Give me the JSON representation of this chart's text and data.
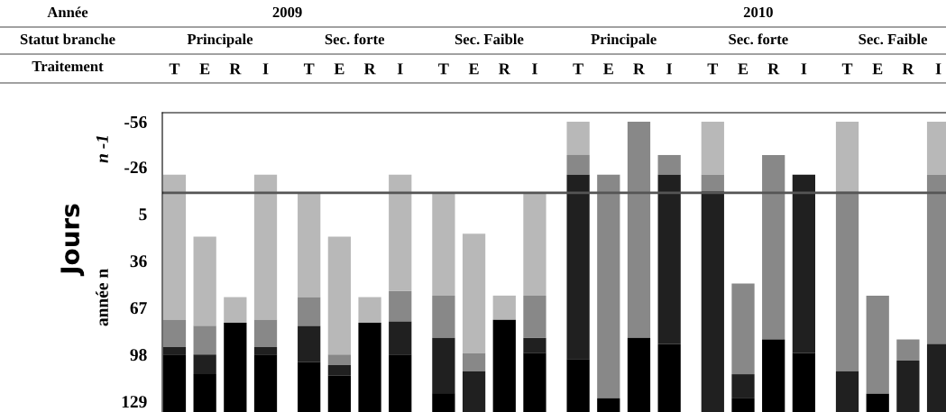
{
  "chart_data": {
    "type": "bar",
    "ylabel": "Jours",
    "categories": [
      "T",
      "E",
      "R",
      "I",
      "T",
      "E",
      "R",
      "I",
      "T",
      "E",
      "R",
      "I",
      "T",
      "E",
      "R",
      "I",
      "T",
      "E",
      "R",
      "I",
      "T",
      "E",
      "R",
      "I"
    ],
    "series": [
      {
        "color": "#b8b8b8",
        "base": [
          -21,
          20,
          60,
          -21,
          -9,
          20,
          60,
          -21,
          -9,
          18,
          59,
          -9,
          -56,
          null,
          null,
          null,
          -56,
          null,
          null,
          null,
          -56,
          null,
          null,
          -56
        ],
        "values": [
          96,
          59,
          17,
          96,
          69,
          78,
          17,
          77,
          68,
          79,
          16,
          68,
          22,
          null,
          null,
          null,
          35,
          null,
          null,
          null,
          46,
          null,
          null,
          35
        ]
      },
      {
        "color": "#888888",
        "base": [
          75,
          79,
          null,
          75,
          60,
          98,
          null,
          56,
          59,
          97,
          null,
          59,
          -34,
          -21,
          -56,
          -34,
          -21,
          51,
          -34,
          null,
          -10,
          59,
          88,
          -21
        ],
        "values": [
          18,
          19,
          null,
          18,
          19,
          7,
          null,
          20,
          28,
          12,
          null,
          28,
          13,
          148,
          143,
          13,
          11,
          60,
          122,
          null,
          119,
          65,
          14,
          112
        ]
      },
      {
        "color": "#202020",
        "base": [
          93,
          98,
          null,
          93,
          79,
          105,
          null,
          76,
          87,
          109,
          null,
          87,
          -21,
          null,
          null,
          -21,
          -10,
          111,
          null,
          -21,
          109,
          null,
          102,
          91
        ],
        "values": [
          5,
          13,
          null,
          5,
          24,
          7,
          null,
          22,
          37,
          27,
          null,
          10,
          122,
          null,
          null,
          112,
          146,
          16,
          null,
          118,
          27,
          null,
          34,
          45
        ]
      },
      {
        "color": "#000000",
        "base": [
          98,
          111,
          77,
          98,
          103,
          112,
          77,
          98,
          124,
          null,
          75,
          97,
          101,
          127,
          87,
          91,
          null,
          127,
          88,
          97,
          null,
          124,
          null,
          null
        ],
        "values": [
          38,
          25,
          59,
          38,
          33,
          24,
          59,
          38,
          12,
          null,
          61,
          39,
          35,
          9,
          49,
          45,
          null,
          9,
          48,
          39,
          null,
          12,
          null,
          null
        ]
      }
    ],
    "ylim": [
      136,
      -62
    ],
    "yticks": [
      -56,
      -26,
      5,
      36,
      67,
      98,
      129
    ],
    "ref_lines": [
      {
        "axis": "y",
        "value": -9,
        "color": "#555555"
      }
    ],
    "annotations": [
      "Année",
      "2009",
      "2010",
      "Statut branche",
      "Principale",
      "Sec. forte",
      "Sec. Faible",
      "Principale",
      "Sec. forte",
      "Sec. Faible",
      "Traitement",
      "n -1",
      "année n"
    ],
    "grid": false
  }
}
